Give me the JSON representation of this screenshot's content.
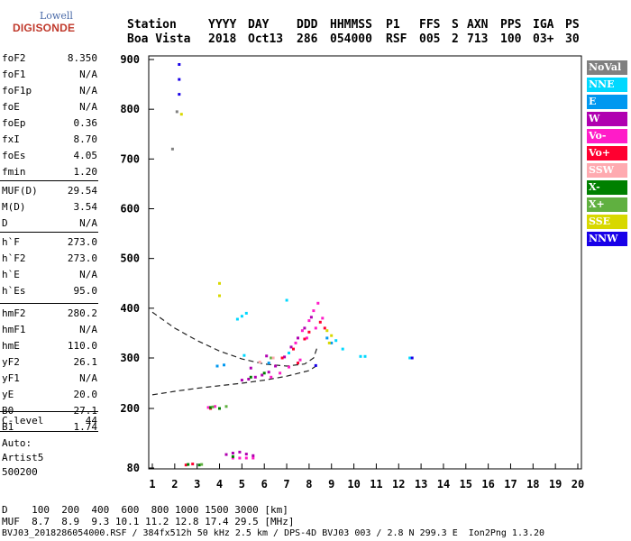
{
  "logo": {
    "line1": "Lowell",
    "line2": "DIGISONDE"
  },
  "header": {
    "labels": [
      "Station",
      "YYYY",
      "DAY",
      "DDD",
      "HHMMSS",
      "P1",
      "FFS",
      "S",
      "AXN",
      "PPS",
      "IGA",
      "PS"
    ],
    "values": [
      "Boa Vista",
      "2018",
      "Oct13",
      "286",
      "054000",
      "RSF",
      "005",
      "2",
      "713",
      "100",
      "03+",
      "30"
    ]
  },
  "params": {
    "group1": [
      {
        "name": "foF2",
        "value": "8.350"
      },
      {
        "name": "foF1",
        "value": "N/A"
      },
      {
        "name": "foF1p",
        "value": "N/A"
      },
      {
        "name": "foE",
        "value": "N/A"
      },
      {
        "name": "foEp",
        "value": "0.36"
      },
      {
        "name": "fxI",
        "value": "8.70"
      },
      {
        "name": "foEs",
        "value": "4.05"
      },
      {
        "name": "fmin",
        "value": "1.20"
      }
    ],
    "group2": [
      {
        "name": "MUF(D)",
        "value": "29.54"
      },
      {
        "name": "M(D)",
        "value": "3.54"
      },
      {
        "name": "D",
        "value": "N/A"
      }
    ],
    "group3": [
      {
        "name": "h`F",
        "value": "273.0"
      },
      {
        "name": "h`F2",
        "value": "273.0"
      },
      {
        "name": "h`E",
        "value": "N/A"
      },
      {
        "name": "h`Es",
        "value": "95.0"
      }
    ],
    "group4": [
      {
        "name": "hmF2",
        "value": "280.2"
      },
      {
        "name": "hmF1",
        "value": "N/A"
      },
      {
        "name": "hmE",
        "value": "110.0"
      },
      {
        "name": "yF2",
        "value": "26.1"
      },
      {
        "name": "yF1",
        "value": "N/A"
      },
      {
        "name": "yE",
        "value": "20.0"
      },
      {
        "name": "B0",
        "value": "27.1"
      },
      {
        "name": "B1",
        "value": "1.74"
      }
    ],
    "group5": [
      {
        "name": "C-level",
        "value": "44"
      }
    ],
    "auto": [
      "Auto:",
      "Artist5",
      "500200"
    ]
  },
  "legend": [
    {
      "label": "NoVal",
      "color": "#808080"
    },
    {
      "label": "NNE",
      "color": "#00d8ff"
    },
    {
      "label": "E",
      "color": "#0098f0"
    },
    {
      "label": "W",
      "color": "#b000b0"
    },
    {
      "label": "Vo-",
      "color": "#ff1cc8"
    },
    {
      "label": "Vo+",
      "color": "#ff0030"
    },
    {
      "label": "SSW",
      "color": "#ffaab0"
    },
    {
      "label": "X-",
      "color": "#008000"
    },
    {
      "label": "X+",
      "color": "#60b040"
    },
    {
      "label": "SSE",
      "color": "#d8d800"
    },
    {
      "label": "NNW",
      "color": "#1800e8"
    }
  ],
  "chart_data": {
    "type": "scatter",
    "xlim": [
      1,
      20
    ],
    "ylim": [
      80,
      900
    ],
    "xticks": [
      1,
      2,
      3,
      4,
      5,
      6,
      7,
      8,
      9,
      10,
      11,
      12,
      13,
      14,
      15,
      16,
      17,
      18,
      19,
      20
    ],
    "yticks": [
      80,
      200,
      300,
      400,
      500,
      600,
      700,
      800,
      900
    ],
    "grid": false,
    "legend_position": "right",
    "series": [
      {
        "name": "Vo-",
        "color": "#ff1cc8",
        "points": [
          [
            4.6,
            100
          ],
          [
            4.9,
            100
          ],
          [
            5.2,
            100
          ],
          [
            5.5,
            100
          ],
          [
            3.5,
            202
          ],
          [
            3.8,
            204
          ],
          [
            6.3,
            262
          ],
          [
            6.7,
            270
          ],
          [
            7.1,
            282
          ],
          [
            7.6,
            296
          ],
          [
            7.4,
            330
          ],
          [
            7.7,
            355
          ],
          [
            8.0,
            375
          ],
          [
            8.2,
            395
          ],
          [
            8.4,
            410
          ],
          [
            8.6,
            380
          ],
          [
            7.9,
            340
          ],
          [
            8.3,
            360
          ]
        ]
      },
      {
        "name": "W",
        "color": "#b000b0",
        "points": [
          [
            4.3,
            107
          ],
          [
            4.6,
            110
          ],
          [
            4.9,
            112
          ],
          [
            5.2,
            108
          ],
          [
            5.5,
            105
          ],
          [
            5.0,
            256
          ],
          [
            5.3,
            258
          ],
          [
            5.6,
            262
          ],
          [
            5.9,
            266
          ],
          [
            6.2,
            272
          ],
          [
            6.5,
            284
          ],
          [
            6.9,
            302
          ],
          [
            7.2,
            322
          ],
          [
            7.5,
            340
          ],
          [
            7.8,
            360
          ],
          [
            8.1,
            382
          ],
          [
            6.1,
            304
          ],
          [
            5.4,
            280
          ]
        ]
      },
      {
        "name": "Vo+",
        "color": "#ff0030",
        "points": [
          [
            2.5,
            86
          ],
          [
            2.8,
            88
          ],
          [
            3.6,
            200
          ],
          [
            6.8,
            300
          ],
          [
            7.3,
            318
          ],
          [
            7.8,
            338
          ],
          [
            8.0,
            352
          ],
          [
            8.5,
            372
          ],
          [
            8.7,
            360
          ],
          [
            7.5,
            290
          ]
        ]
      },
      {
        "name": "NNE",
        "color": "#00d8ff",
        "points": [
          [
            4.8,
            378
          ],
          [
            5.0,
            384
          ],
          [
            5.2,
            390
          ],
          [
            7.0,
            416
          ],
          [
            9.2,
            335
          ],
          [
            9.5,
            318
          ],
          [
            10.3,
            303
          ],
          [
            10.5,
            303
          ],
          [
            12.5,
            300
          ],
          [
            7.1,
            310
          ],
          [
            5.1,
            305
          ]
        ]
      },
      {
        "name": "E",
        "color": "#0098f0",
        "points": [
          [
            3.9,
            284
          ],
          [
            4.2,
            286
          ],
          [
            6.2,
            290
          ],
          [
            8.8,
            340
          ],
          [
            9.0,
            330
          ]
        ]
      },
      {
        "name": "X-",
        "color": "#008000",
        "points": [
          [
            2.6,
            87
          ],
          [
            3.1,
            86
          ],
          [
            3.6,
            202
          ],
          [
            4.0,
            200
          ],
          [
            5.4,
            262
          ],
          [
            6.0,
            270
          ],
          [
            4.6,
            103
          ]
        ]
      },
      {
        "name": "X+",
        "color": "#60b040",
        "points": [
          [
            3.2,
            87
          ],
          [
            3.7,
            203
          ],
          [
            4.3,
            204
          ],
          [
            6.3,
            300
          ]
        ]
      },
      {
        "name": "SSE",
        "color": "#d8d800",
        "points": [
          [
            4.0,
            450
          ],
          [
            4.0,
            425
          ],
          [
            8.8,
            355
          ],
          [
            9.0,
            345
          ],
          [
            2.3,
            790
          ],
          [
            8.9,
            330
          ]
        ]
      },
      {
        "name": "NNW",
        "color": "#1800e8",
        "points": [
          [
            2.2,
            830
          ],
          [
            2.2,
            860
          ],
          [
            2.2,
            890
          ],
          [
            12.6,
            300
          ],
          [
            8.3,
            285
          ]
        ]
      },
      {
        "name": "SSW",
        "color": "#ffaab0",
        "points": [
          [
            5.8,
            292
          ],
          [
            6.4,
            300
          ]
        ]
      },
      {
        "name": "NoVal",
        "color": "#808080",
        "points": [
          [
            1.9,
            720
          ],
          [
            2.1,
            795
          ]
        ]
      }
    ],
    "profile_lines": [
      {
        "style": "dashed",
        "points": [
          [
            1,
            392
          ],
          [
            2,
            360
          ],
          [
            3,
            335
          ],
          [
            4,
            314
          ],
          [
            5,
            298
          ],
          [
            6,
            288
          ],
          [
            7,
            284
          ],
          [
            7.8,
            288
          ],
          [
            8.2,
            300
          ],
          [
            8.35,
            320
          ]
        ]
      },
      {
        "style": "dashed",
        "points": [
          [
            1,
            227
          ],
          [
            2,
            234
          ],
          [
            3,
            240
          ],
          [
            4,
            245
          ],
          [
            5,
            250
          ],
          [
            6,
            256
          ],
          [
            7,
            264
          ],
          [
            8,
            275
          ],
          [
            8.35,
            285
          ]
        ]
      }
    ]
  },
  "footer": {
    "line1": "D    100  200  400  600  800 1000 1500 3000 [km]",
    "line2": "MUF  8.7  8.9  9.3 10.1 11.2 12.8 17.4 29.5 [MHz]",
    "line3": "BVJ03_2018286054000.RSF / 384fx512h 50 kHz 2.5 km / DPS-4D BVJ03 003 / 2.8 N 299.3 E  Ion2Png 1.3.20"
  }
}
